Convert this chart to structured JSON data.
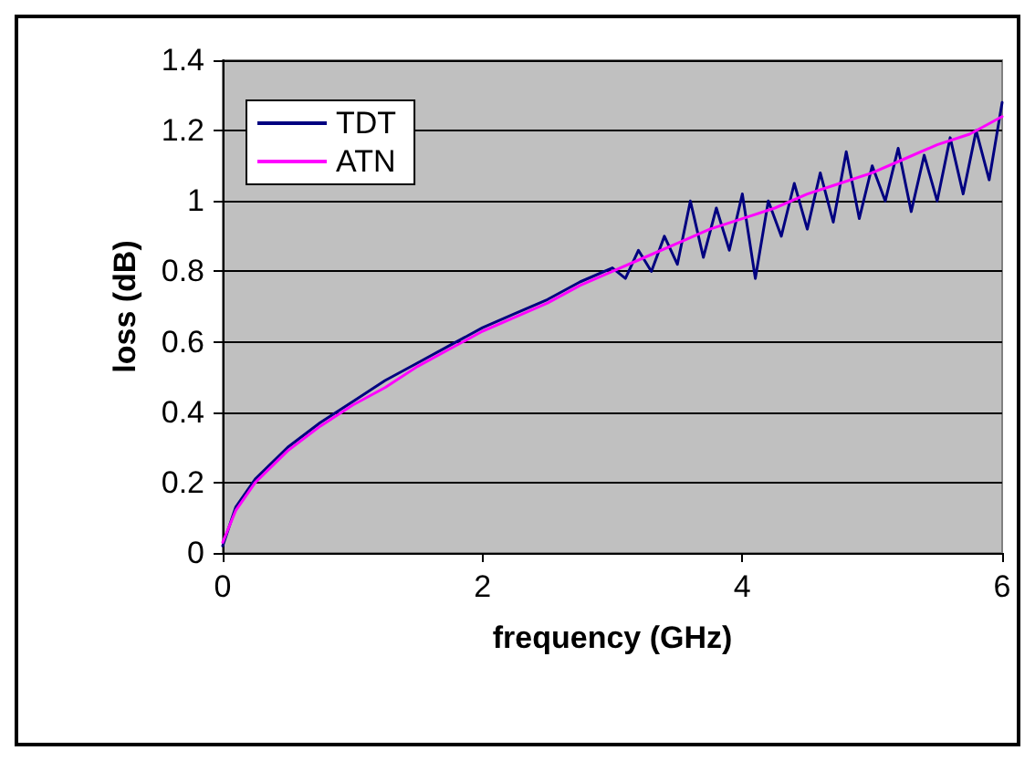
{
  "chart_data": {
    "type": "line",
    "xlabel": "frequency (GHz)",
    "ylabel": "loss (dB)",
    "xlim": [
      0,
      6
    ],
    "xticks": [
      0,
      2,
      4,
      6
    ],
    "ylim": [
      0,
      1.4
    ],
    "yticks": [
      0,
      0.2,
      0.4,
      0.6,
      0.8,
      1,
      1.2,
      1.4
    ],
    "grid": "y",
    "legend": "top left",
    "marker": "none",
    "line_style": "solid",
    "series": [
      {
        "name": "TDT",
        "color": "#000080",
        "x": [
          0,
          0.1,
          0.25,
          0.5,
          0.75,
          1,
          1.25,
          1.5,
          1.75,
          2,
          2.25,
          2.5,
          2.75,
          3,
          3.1,
          3.2,
          3.3,
          3.4,
          3.5,
          3.6,
          3.7,
          3.8,
          3.9,
          4.0,
          4.1,
          4.2,
          4.3,
          4.4,
          4.5,
          4.6,
          4.7,
          4.8,
          4.9,
          5.0,
          5.1,
          5.2,
          5.3,
          5.4,
          5.5,
          5.6,
          5.7,
          5.8,
          5.9,
          6.0
        ],
        "values": [
          0.02,
          0.13,
          0.21,
          0.3,
          0.37,
          0.43,
          0.49,
          0.54,
          0.59,
          0.64,
          0.68,
          0.72,
          0.77,
          0.81,
          0.78,
          0.86,
          0.8,
          0.9,
          0.82,
          1.0,
          0.84,
          0.98,
          0.86,
          1.02,
          0.78,
          1.0,
          0.9,
          1.05,
          0.92,
          1.08,
          0.94,
          1.14,
          0.95,
          1.1,
          1.0,
          1.15,
          0.97,
          1.13,
          1.0,
          1.18,
          1.02,
          1.2,
          1.06,
          1.28
        ]
      },
      {
        "name": "ATN",
        "color": "#ff00ff",
        "x": [
          0,
          0.1,
          0.25,
          0.5,
          0.75,
          1,
          1.25,
          1.5,
          1.75,
          2,
          2.25,
          2.5,
          2.75,
          3,
          3.25,
          3.5,
          3.75,
          4,
          4.25,
          4.5,
          4.75,
          5,
          5.25,
          5.5,
          5.75,
          6
        ],
        "values": [
          0.03,
          0.12,
          0.2,
          0.29,
          0.36,
          0.42,
          0.47,
          0.53,
          0.58,
          0.63,
          0.67,
          0.71,
          0.76,
          0.8,
          0.84,
          0.88,
          0.92,
          0.95,
          0.98,
          1.02,
          1.05,
          1.08,
          1.12,
          1.16,
          1.19,
          1.24
        ]
      }
    ]
  }
}
